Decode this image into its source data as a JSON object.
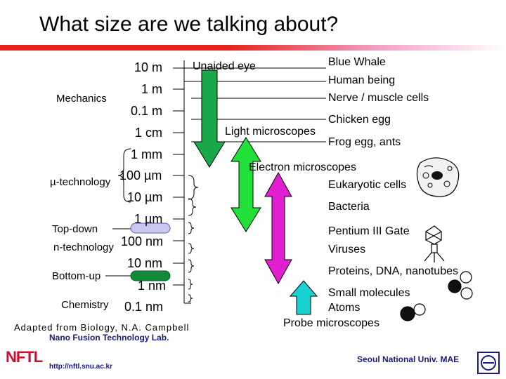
{
  "title": "What size are we talking about?",
  "scale": [
    "10 m",
    "1 m",
    "0.1 m",
    "1 cm",
    "1 mm",
    "100 µm",
    "10 µm",
    "1 µm",
    "100 nm",
    "10 nm",
    "1 nm",
    "0.1 nm"
  ],
  "left_labels": {
    "mechanics": "Mechanics",
    "micro": "µ-technology",
    "topdown": "Top-down",
    "ntech": "n-technology",
    "bottomup": "Bottom-up",
    "chemistry": "Chemistry"
  },
  "tools": {
    "unaided": "Unaided eye",
    "light": "Light microscopes",
    "electron": "Electron microscopes",
    "probe": "Probe microscopes"
  },
  "objects": [
    "Blue Whale",
    "Human being",
    "Nerve / muscle cells",
    "Chicken egg",
    "Frog egg, ants",
    "Eukaryotic cells",
    "Bacteria",
    "Pentium III Gate",
    "Viruses",
    "Proteins, DNA, nanotubes",
    "Small molecules",
    "Atoms"
  ],
  "credit": "Adapted from  Biology, N.A. Campbell",
  "footer": {
    "logo": "NFTL",
    "lab": "Nano Fusion Technology Lab.",
    "url": "http://nftl.snu.ac.kr",
    "univ": "Seoul National Univ. MAE"
  },
  "colors": {
    "green_arrow": "#1aa84a",
    "bright_green_arrow": "#22e03a",
    "magenta_arrow": "#e020d0",
    "cyan_arrow": "#18d2d2",
    "topdown_pill": "#c8c8f0",
    "bottomup_pill": "#128a3a",
    "accent_bar": "#e4231b"
  }
}
